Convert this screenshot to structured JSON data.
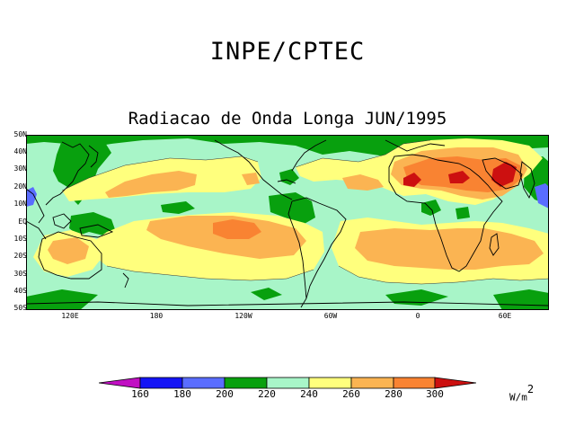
{
  "header": {
    "agency": "INPE/CPTEC",
    "subtitle": "Radiacao de Onda Longa JUN/1995"
  },
  "map": {
    "latitude_labels": [
      "50N",
      "40N",
      "30N",
      "20N",
      "10N",
      "EQ",
      "10S",
      "20S",
      "30S",
      "40S",
      "50S"
    ],
    "longitude_labels": [
      "120E",
      "180",
      "120W",
      "60W",
      "0",
      "60E"
    ]
  },
  "colorbar": {
    "ticks": [
      "160",
      "180",
      "200",
      "220",
      "240",
      "260",
      "280",
      "300"
    ],
    "units": "W/m",
    "units_exponent": "2",
    "colors": [
      "#c10fc3",
      "#1414f5",
      "#5a6dff",
      "#08a00e",
      "#a8f5c8",
      "#ffff7d",
      "#fbb452",
      "#f98332",
      "#cc1010"
    ]
  },
  "palette": {
    "green": "#08a00e",
    "mint": "#a8f5c8",
    "yellow": "#ffff7d",
    "orange": "#fbb452",
    "dark_orange": "#f98332",
    "red": "#cc1010",
    "blue": "#5a6dff"
  }
}
